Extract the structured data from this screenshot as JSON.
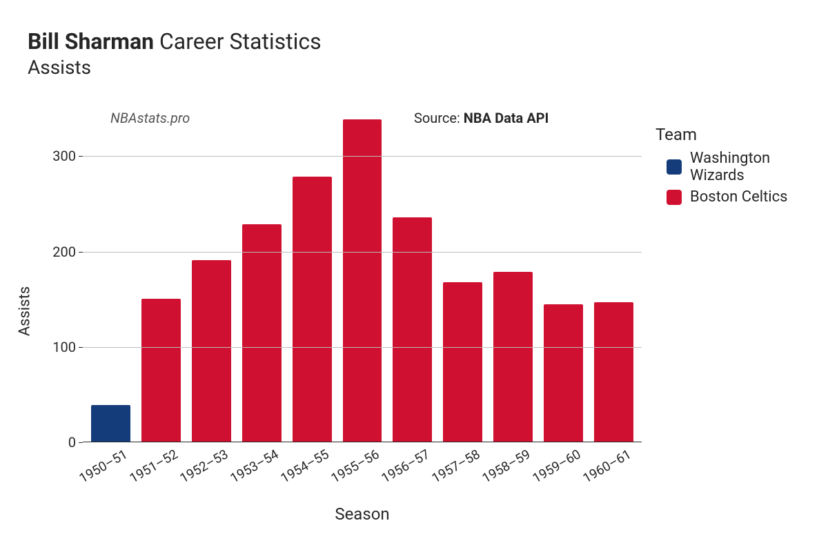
{
  "title": {
    "name_bold": "Bill Sharman",
    "rest": "Career Statistics",
    "subtitle": "Assists"
  },
  "watermark": "NBAstats.pro",
  "source": {
    "label": "Source: ",
    "value": "NBA Data API"
  },
  "axes": {
    "xlabel": "Season",
    "ylabel": "Assists",
    "ylabel_fontsize": 22,
    "xlabel_fontsize": 24,
    "ylim": [
      0,
      340
    ],
    "yticks": [
      0,
      100,
      200,
      300
    ],
    "tick_fontsize": 20,
    "grid_color": "#bcbcbc",
    "axis_color": "#262626"
  },
  "chart": {
    "type": "bar",
    "background_color": "#ffffff",
    "bar_width": 0.78,
    "categories": [
      "1950–51",
      "1951–52",
      "1952–53",
      "1953–54",
      "1954–55",
      "1955–56",
      "1956–57",
      "1957–58",
      "1958–59",
      "1959–60",
      "1960–61"
    ],
    "values": [
      38,
      150,
      190,
      228,
      278,
      338,
      235,
      167,
      178,
      144,
      146
    ],
    "bar_colors": [
      "#143c7a",
      "#cf1030",
      "#cf1030",
      "#cf1030",
      "#cf1030",
      "#cf1030",
      "#cf1030",
      "#cf1030",
      "#cf1030",
      "#cf1030",
      "#cf1030"
    ]
  },
  "legend": {
    "title": "Team",
    "items": [
      {
        "label": "Washington Wizards",
        "color": "#143c7a"
      },
      {
        "label": "Boston Celtics",
        "color": "#cf1030"
      }
    ]
  }
}
